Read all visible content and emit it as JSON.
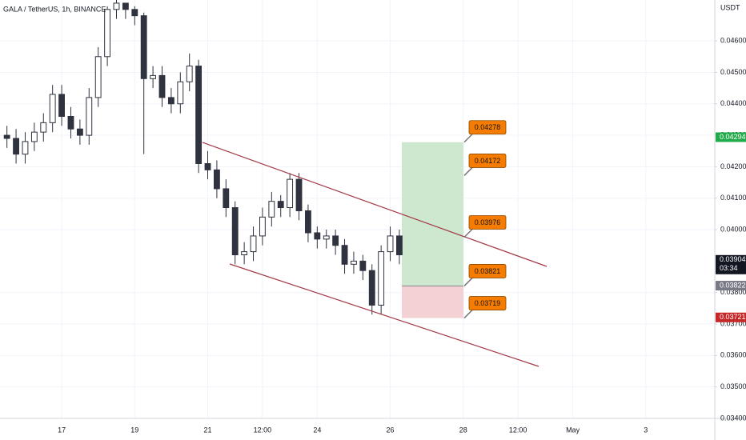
{
  "chart_data": {
    "type": "candlestick",
    "title": "GALA / TetherUS, 1h, BINANCE",
    "y_axis_unit": "USDT",
    "x": [
      15.5,
      15.75,
      16,
      16.25,
      16.5,
      16.75,
      17,
      17.25,
      17.5,
      17.75,
      18,
      18.25,
      18.5,
      18.75,
      19,
      19.25,
      19.5,
      19.75,
      20,
      20.25,
      20.5,
      20.75,
      21,
      21.25,
      21.5,
      21.75,
      22,
      22.25,
      22.5,
      22.75,
      23,
      23.25,
      23.5,
      23.75,
      24,
      24.25,
      24.5,
      24.75,
      25,
      25.25,
      25.5,
      25.75,
      26,
      26.25
    ],
    "open": [
      0.043,
      0.0429,
      0.0424,
      0.0428,
      0.0431,
      0.0434,
      0.0443,
      0.0436,
      0.0432,
      0.043,
      0.0442,
      0.0455,
      0.047,
      0.0472,
      0.047,
      0.0468,
      0.0448,
      0.0449,
      0.0442,
      0.044,
      0.0447,
      0.0452,
      0.0421,
      0.0419,
      0.0413,
      0.0407,
      0.0392,
      0.0393,
      0.0398,
      0.0404,
      0.0409,
      0.0407,
      0.0416,
      0.0406,
      0.0399,
      0.0397,
      0.0398,
      0.0395,
      0.0389,
      0.039,
      0.0387,
      0.0376,
      0.0393,
      0.0398
    ],
    "high": [
      0.0433,
      0.0432,
      0.0431,
      0.0434,
      0.0437,
      0.0446,
      0.0446,
      0.0439,
      0.0435,
      0.0445,
      0.0458,
      0.0471,
      0.0473,
      0.0472,
      0.0471,
      0.0469,
      0.0452,
      0.0452,
      0.0445,
      0.045,
      0.0456,
      0.0454,
      0.0425,
      0.0422,
      0.0416,
      0.0409,
      0.0396,
      0.0401,
      0.0407,
      0.0412,
      0.0411,
      0.0418,
      0.0418,
      0.0408,
      0.0401,
      0.04,
      0.04,
      0.0397,
      0.0393,
      0.0392,
      0.0389,
      0.0395,
      0.0401,
      0.04
    ],
    "low": [
      0.0426,
      0.0421,
      0.0421,
      0.0425,
      0.0428,
      0.0431,
      0.0433,
      0.0429,
      0.0427,
      0.0427,
      0.0439,
      0.0452,
      0.0467,
      0.0467,
      0.0465,
      0.0424,
      0.0445,
      0.0439,
      0.0437,
      0.0437,
      0.0444,
      0.0418,
      0.0416,
      0.041,
      0.0404,
      0.0389,
      0.0389,
      0.039,
      0.0395,
      0.0401,
      0.0404,
      0.0404,
      0.0403,
      0.0396,
      0.0394,
      0.0394,
      0.0392,
      0.0386,
      0.0386,
      0.0384,
      0.0373,
      0.0373,
      0.039,
      0.0389
    ],
    "close": [
      0.0429,
      0.0424,
      0.0428,
      0.0431,
      0.0434,
      0.0443,
      0.0436,
      0.0432,
      0.043,
      0.0442,
      0.0455,
      0.047,
      0.0472,
      0.047,
      0.0468,
      0.0448,
      0.0449,
      0.0442,
      0.044,
      0.0447,
      0.0452,
      0.0421,
      0.0419,
      0.0413,
      0.0407,
      0.0392,
      0.0393,
      0.0398,
      0.0404,
      0.0409,
      0.0407,
      0.0416,
      0.0406,
      0.0399,
      0.0397,
      0.0398,
      0.0395,
      0.0389,
      0.039,
      0.0387,
      0.0376,
      0.0393,
      0.0398,
      0.0392
    ],
    "xlim": [
      15.31,
      34.89
    ],
    "xticks": [
      17,
      19,
      21,
      {
        "value": 22.5,
        "label": "12:00"
      },
      24,
      26,
      28,
      {
        "value": 29.5,
        "label": "12:00"
      },
      {
        "value": 31,
        "label": "May"
      },
      {
        "value": 33,
        "label": "3"
      }
    ],
    "ylim": [
      0.034,
      0.0473
    ],
    "yticks": [
      {
        "value": 0.034,
        "label": "0.03400"
      },
      {
        "value": 0.035,
        "label": "0.03500"
      },
      {
        "value": 0.036,
        "label": "0.03600"
      },
      {
        "value": 0.037,
        "label": "0.03700"
      },
      {
        "value": 0.038,
        "label": "0.03800"
      },
      {
        "value": 0.04,
        "label": "0.04000"
      },
      {
        "value": 0.041,
        "label": "0.04100"
      },
      {
        "value": 0.042,
        "label": "0.04200"
      },
      {
        "value": 0.043,
        "label": "0.04300"
      },
      {
        "value": 0.044,
        "label": "0.04400"
      },
      {
        "value": 0.045,
        "label": "0.04500"
      },
      {
        "value": 0.046,
        "label": "0.04600"
      }
    ],
    "grid": true,
    "callouts": [
      0.04278,
      0.04172,
      0.03976,
      0.03821,
      0.03719
    ],
    "price_badges": [
      {
        "value": 0.04294,
        "color": "#22ab4a"
      },
      {
        "value": 0.03904,
        "color": "#131722",
        "countdown": "03:34"
      },
      {
        "value": 0.03822,
        "color": "#787b86"
      },
      {
        "value": 0.03721,
        "color": "#c62828"
      }
    ]
  }
}
